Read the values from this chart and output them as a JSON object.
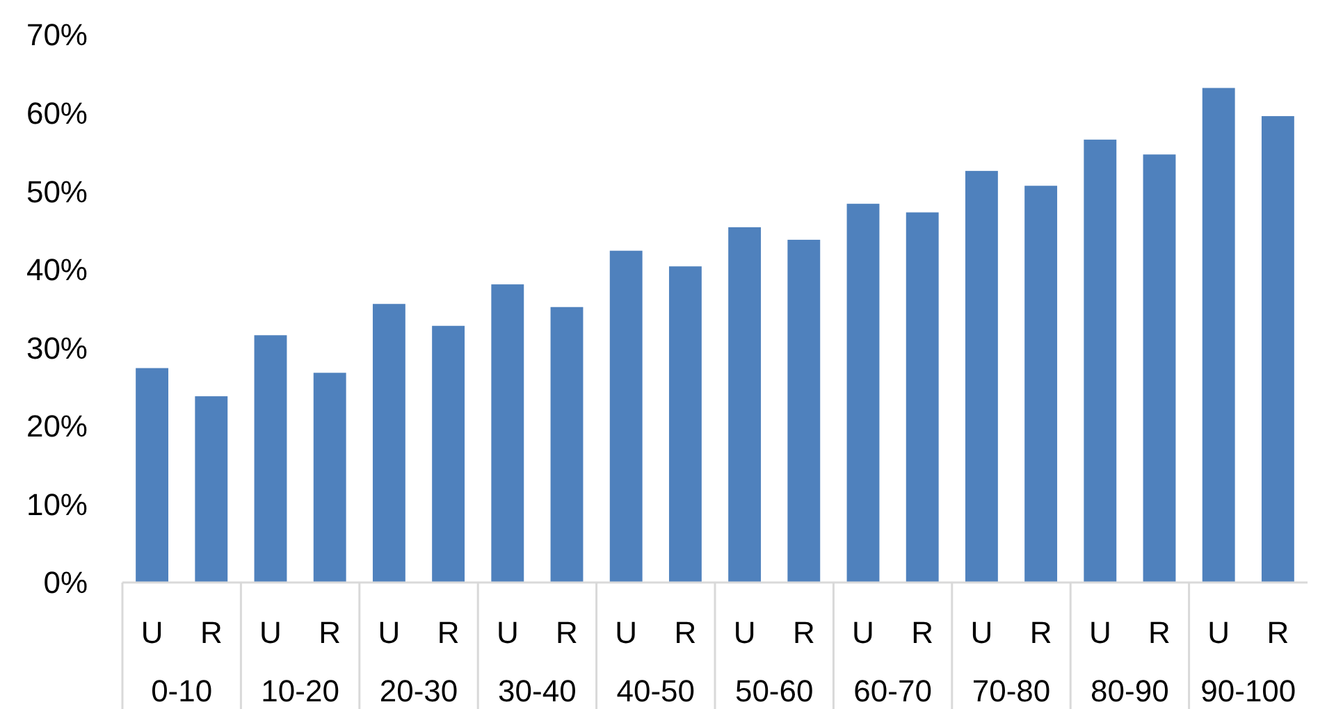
{
  "chart_data": {
    "type": "bar",
    "categories": [
      "U",
      "R",
      "U",
      "R",
      "U",
      "R",
      "U",
      "R",
      "U",
      "R",
      "U",
      "R",
      "U",
      "R",
      "U",
      "R",
      "U",
      "R",
      "U",
      "R"
    ],
    "values": [
      27.4,
      23.8,
      31.6,
      26.8,
      35.6,
      32.8,
      38.1,
      35.2,
      42.4,
      40.4,
      45.4,
      43.8,
      48.4,
      47.3,
      52.6,
      50.7,
      56.6,
      54.7,
      63.2,
      59.6
    ],
    "color": "#4f81bd",
    "ylim": [
      0,
      70
    ],
    "yticks": [
      {
        "value": 0,
        "label": "0%"
      },
      {
        "value": 10,
        "label": "10%"
      },
      {
        "value": 20,
        "label": "20%"
      },
      {
        "value": 30,
        "label": "30%"
      },
      {
        "value": 40,
        "label": "40%"
      },
      {
        "value": 50,
        "label": "50%"
      },
      {
        "value": 60,
        "label": "60%"
      },
      {
        "value": 70,
        "label": "70%"
      }
    ],
    "grid": false,
    "annotations": [
      "0-10",
      "10-20",
      "20-30",
      "30-40",
      "40-50",
      "50-60",
      "60-70",
      "70-80",
      "80-90",
      "90-100"
    ]
  }
}
